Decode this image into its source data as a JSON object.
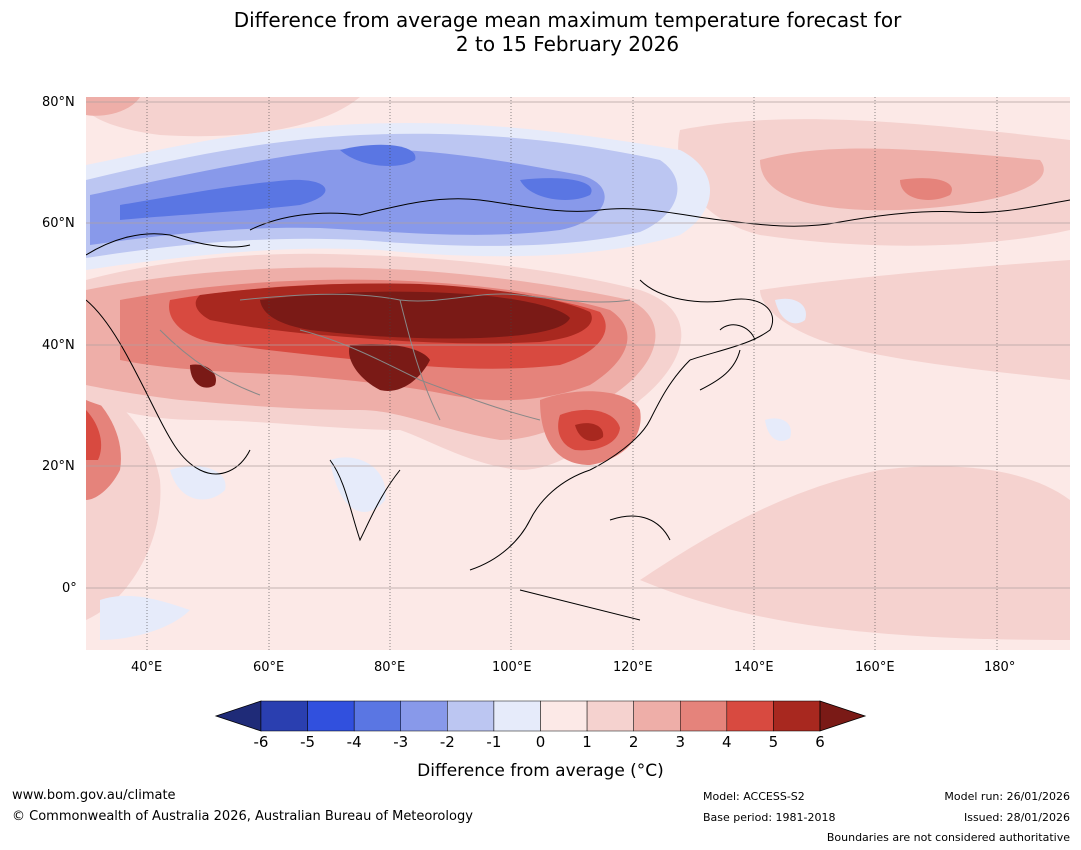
{
  "title": {
    "line1": "Difference from average mean maximum temperature forecast for",
    "line2": "2 to 15 February 2026"
  },
  "map": {
    "lat_labels": [
      "80°N",
      "60°N",
      "40°N",
      "20°N",
      "0°"
    ],
    "lon_labels": [
      "40°E",
      "60°E",
      "80°E",
      "100°E",
      "120°E",
      "140°E",
      "160°E",
      "180°"
    ],
    "region": "Asia"
  },
  "legend": {
    "ticks": [
      "-6",
      "-5",
      "-4",
      "-3",
      "-2",
      "-1",
      "0",
      "1",
      "2",
      "3",
      "4",
      "5",
      "6"
    ],
    "title": "Difference from average (°C)",
    "colors": [
      "#1f2b78",
      "#2a3fb0",
      "#3150de",
      "#5a76e3",
      "#8899ea",
      "#bcc6f2",
      "#e6ebfa",
      "#fce9e7",
      "#f5d2cf",
      "#eeaea8",
      "#e5837b",
      "#d84a40",
      "#a8281f",
      "#7a1a16"
    ]
  },
  "footer": {
    "website": "www.bom.gov.au/climate",
    "copyright": "© Commonwealth of Australia 2026, Australian Bureau of Meteorology",
    "model": "Model: ACCESS-S2",
    "base_period": "Base period: 1981-2018",
    "model_run": "Model run: 26/01/2026",
    "issued": "Issued: 28/01/2026",
    "disclaimer": "Boundaries are not considered authoritative"
  }
}
